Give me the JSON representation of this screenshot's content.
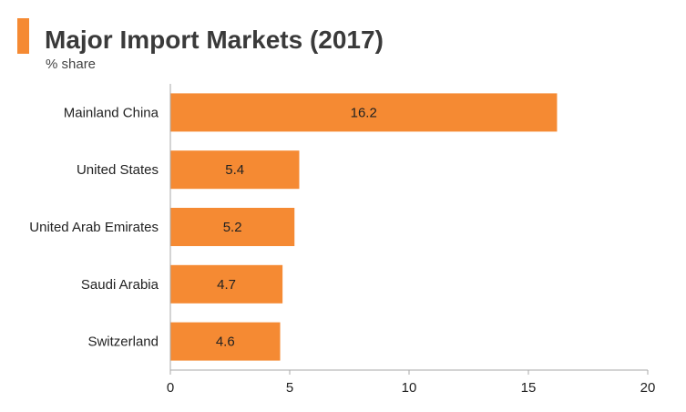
{
  "header": {
    "title": "Major Import Markets (2017)",
    "subtitle": "% share"
  },
  "colors": {
    "accent": "#f58a33",
    "bar": "#f58a33",
    "axis": "#aaaaaa"
  },
  "chart_data": {
    "type": "bar",
    "orientation": "horizontal",
    "title": "Major Import Markets (2017)",
    "subtitle": "% share",
    "xlabel": "",
    "ylabel": "",
    "categories": [
      "Mainland China",
      "United States",
      "United Arab Emirates",
      "Saudi Arabia",
      "Switzerland"
    ],
    "values": [
      16.2,
      5.4,
      5.2,
      4.7,
      4.6
    ],
    "xlim": [
      0,
      20
    ],
    "xticks": [
      0,
      5,
      10,
      15,
      20
    ],
    "grid": false,
    "legend": "none",
    "data_labels": true
  }
}
